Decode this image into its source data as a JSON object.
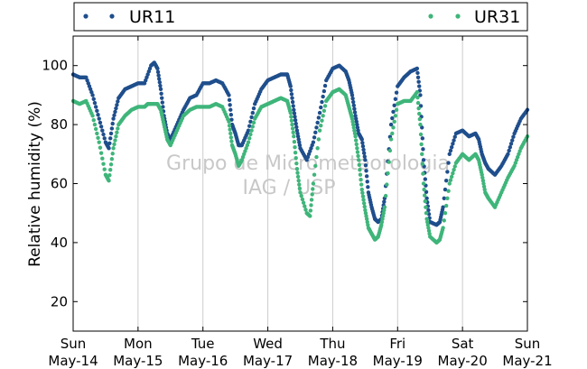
{
  "chart_data": {
    "type": "scatter",
    "ylabel": "Relative humidity (%)",
    "ylim": [
      10,
      110
    ],
    "yticks": [
      20,
      40,
      60,
      80,
      100
    ],
    "xlim": [
      0,
      7
    ],
    "xticks": [
      {
        "x": 0,
        "day": "Sun",
        "date": "May-14"
      },
      {
        "x": 1,
        "day": "Mon",
        "date": "May-15"
      },
      {
        "x": 2,
        "day": "Tue",
        "date": "May-16"
      },
      {
        "x": 3,
        "day": "Wed",
        "date": "May-17"
      },
      {
        "x": 4,
        "day": "Thu",
        "date": "May-18"
      },
      {
        "x": 5,
        "day": "Fri",
        "date": "May-19"
      },
      {
        "x": 6,
        "day": "Sat",
        "date": "May-20"
      },
      {
        "x": 7,
        "day": "Sun",
        "date": "May-21"
      }
    ],
    "grid": true,
    "legend_position": "top",
    "watermark": [
      "Grupo de Micrometeorologia",
      "IAG / USP"
    ],
    "series": [
      {
        "name": "UR11",
        "color": "#1f4e8c",
        "points": [
          [
            0.0,
            97
          ],
          [
            0.1,
            96
          ],
          [
            0.2,
            96
          ],
          [
            0.3,
            90
          ],
          [
            0.4,
            82
          ],
          [
            0.5,
            74
          ],
          [
            0.55,
            72
          ],
          [
            0.62,
            82
          ],
          [
            0.7,
            89
          ],
          [
            0.8,
            92
          ],
          [
            0.9,
            93
          ],
          [
            1.0,
            94
          ],
          [
            1.1,
            94
          ],
          [
            1.2,
            100
          ],
          [
            1.25,
            101
          ],
          [
            1.3,
            99
          ],
          [
            1.35,
            92
          ],
          [
            1.4,
            83
          ],
          [
            1.45,
            77
          ],
          [
            1.5,
            75
          ],
          [
            1.6,
            80
          ],
          [
            1.7,
            85
          ],
          [
            1.8,
            89
          ],
          [
            1.9,
            90
          ],
          [
            2.0,
            94
          ],
          [
            2.1,
            94
          ],
          [
            2.2,
            95
          ],
          [
            2.3,
            94
          ],
          [
            2.4,
            90
          ],
          [
            2.45,
            80
          ],
          [
            2.5,
            77
          ],
          [
            2.55,
            73
          ],
          [
            2.6,
            73
          ],
          [
            2.7,
            78
          ],
          [
            2.8,
            87
          ],
          [
            2.9,
            92
          ],
          [
            3.0,
            95
          ],
          [
            3.1,
            96
          ],
          [
            3.2,
            97
          ],
          [
            3.3,
            97
          ],
          [
            3.35,
            93
          ],
          [
            3.4,
            85
          ],
          [
            3.45,
            78
          ],
          [
            3.5,
            72
          ],
          [
            3.6,
            68
          ],
          [
            3.7,
            74
          ],
          [
            3.8,
            84
          ],
          [
            3.9,
            95
          ],
          [
            4.0,
            99
          ],
          [
            4.1,
            100
          ],
          [
            4.2,
            98
          ],
          [
            4.25,
            95
          ],
          [
            4.3,
            90
          ],
          [
            4.35,
            83
          ],
          [
            4.4,
            77
          ],
          [
            4.45,
            75
          ],
          [
            4.5,
            68
          ],
          [
            4.55,
            57
          ],
          [
            4.6,
            52
          ],
          [
            4.65,
            48
          ],
          [
            4.7,
            47
          ],
          [
            4.75,
            48
          ],
          [
            4.8,
            55
          ],
          [
            4.9,
            80
          ],
          [
            5.0,
            93
          ],
          [
            5.1,
            96
          ],
          [
            5.2,
            98
          ],
          [
            5.3,
            99
          ],
          [
            5.35,
            90
          ],
          [
            5.4,
            68
          ],
          [
            5.45,
            55
          ],
          [
            5.5,
            47
          ],
          [
            5.6,
            46
          ],
          [
            5.65,
            47
          ],
          [
            5.7,
            52
          ],
          [
            5.8,
            70
          ],
          [
            5.9,
            77
          ],
          [
            6.0,
            78
          ],
          [
            6.1,
            76
          ],
          [
            6.2,
            77
          ],
          [
            6.25,
            75
          ],
          [
            6.3,
            70
          ],
          [
            6.35,
            67
          ],
          [
            6.4,
            65
          ],
          [
            6.5,
            63
          ],
          [
            6.6,
            66
          ],
          [
            6.7,
            70
          ],
          [
            6.8,
            77
          ],
          [
            6.9,
            82
          ],
          [
            7.0,
            85
          ]
        ]
      },
      {
        "name": "UR31",
        "color": "#3fb57a",
        "points": [
          [
            0.0,
            88
          ],
          [
            0.1,
            87
          ],
          [
            0.2,
            88
          ],
          [
            0.3,
            83
          ],
          [
            0.4,
            74
          ],
          [
            0.5,
            63
          ],
          [
            0.55,
            61
          ],
          [
            0.62,
            72
          ],
          [
            0.7,
            80
          ],
          [
            0.8,
            83
          ],
          [
            0.9,
            85
          ],
          [
            1.0,
            86
          ],
          [
            1.1,
            86
          ],
          [
            1.15,
            87
          ],
          [
            1.2,
            87
          ],
          [
            1.3,
            87
          ],
          [
            1.35,
            85
          ],
          [
            1.4,
            80
          ],
          [
            1.45,
            75
          ],
          [
            1.5,
            73
          ],
          [
            1.6,
            78
          ],
          [
            1.7,
            83
          ],
          [
            1.8,
            85
          ],
          [
            1.9,
            86
          ],
          [
            2.0,
            86
          ],
          [
            2.1,
            86
          ],
          [
            2.2,
            87
          ],
          [
            2.3,
            86
          ],
          [
            2.4,
            81
          ],
          [
            2.45,
            73
          ],
          [
            2.5,
            70
          ],
          [
            2.55,
            66
          ],
          [
            2.6,
            68
          ],
          [
            2.7,
            74
          ],
          [
            2.8,
            82
          ],
          [
            2.9,
            86
          ],
          [
            3.0,
            87
          ],
          [
            3.1,
            88
          ],
          [
            3.2,
            89
          ],
          [
            3.3,
            88
          ],
          [
            3.35,
            84
          ],
          [
            3.4,
            76
          ],
          [
            3.45,
            65
          ],
          [
            3.5,
            57
          ],
          [
            3.6,
            50
          ],
          [
            3.65,
            49
          ],
          [
            3.7,
            60
          ],
          [
            3.8,
            78
          ],
          [
            3.9,
            88
          ],
          [
            4.0,
            91
          ],
          [
            4.1,
            92
          ],
          [
            4.2,
            90
          ],
          [
            4.25,
            86
          ],
          [
            4.3,
            82
          ],
          [
            4.35,
            76
          ],
          [
            4.4,
            68
          ],
          [
            4.45,
            58
          ],
          [
            4.5,
            51
          ],
          [
            4.55,
            45
          ],
          [
            4.6,
            43
          ],
          [
            4.65,
            41
          ],
          [
            4.7,
            42
          ],
          [
            4.75,
            46
          ],
          [
            4.8,
            52
          ],
          [
            4.9,
            75
          ],
          [
            5.0,
            87
          ],
          [
            5.1,
            88
          ],
          [
            5.2,
            88
          ],
          [
            5.3,
            91
          ],
          [
            5.35,
            80
          ],
          [
            5.4,
            60
          ],
          [
            5.45,
            48
          ],
          [
            5.5,
            42
          ],
          [
            5.6,
            40
          ],
          [
            5.65,
            41
          ],
          [
            5.7,
            45
          ],
          [
            5.8,
            60
          ],
          [
            5.9,
            67
          ],
          [
            6.0,
            70
          ],
          [
            6.1,
            68
          ],
          [
            6.2,
            70
          ],
          [
            6.25,
            68
          ],
          [
            6.3,
            63
          ],
          [
            6.35,
            57
          ],
          [
            6.4,
            55
          ],
          [
            6.5,
            52
          ],
          [
            6.6,
            57
          ],
          [
            6.7,
            62
          ],
          [
            6.8,
            66
          ],
          [
            6.9,
            72
          ],
          [
            7.0,
            76
          ]
        ]
      }
    ]
  }
}
